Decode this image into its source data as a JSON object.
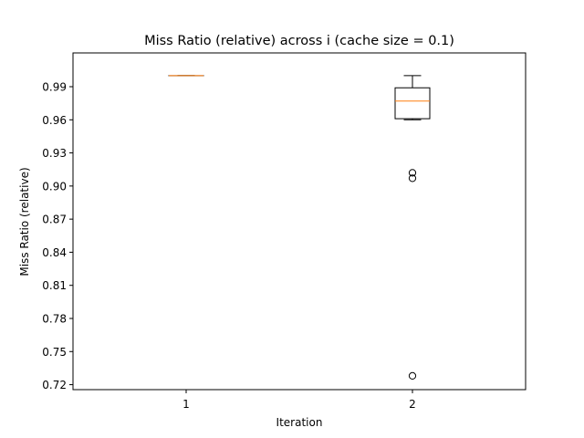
{
  "chart_data": {
    "type": "box",
    "title": "Miss Ratio (relative) across i (cache size = 0.1)",
    "xlabel": "Iteration",
    "ylabel": "Miss Ratio (relative)",
    "ylim": [
      0.7155,
      1.0206
    ],
    "y_ticks": [
      0.72,
      0.75,
      0.78,
      0.81,
      0.84,
      0.87,
      0.9,
      0.93,
      0.96,
      0.99
    ],
    "y_tick_labels": [
      "0.72",
      "0.75",
      "0.78",
      "0.81",
      "0.84",
      "0.87",
      "0.90",
      "0.93",
      "0.96",
      "0.99"
    ],
    "categories": [
      "1",
      "2"
    ],
    "boxes": [
      {
        "category": "1",
        "whisker_low": 1.0,
        "q1": 1.0,
        "median": 1.0,
        "q3": 1.0,
        "whisker_high": 1.0,
        "outliers": []
      },
      {
        "category": "2",
        "whisker_low": 0.96,
        "q1": 0.961,
        "median": 0.977,
        "q3": 0.989,
        "whisker_high": 1.0,
        "outliers": [
          0.912,
          0.907,
          0.728
        ]
      }
    ],
    "grid": false,
    "colors": {
      "box": "#000000",
      "median": "#ff7f0e",
      "outlier": "#000000"
    }
  }
}
